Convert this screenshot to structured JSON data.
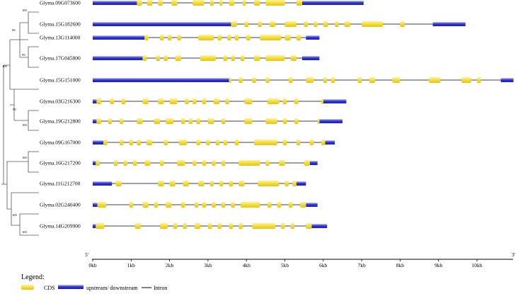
{
  "diagram": {
    "type": "gene_structure",
    "colors": {
      "cds": "#f3dc3c",
      "utr_dark": "#2a2cc8",
      "utr_light": "#9aa0f0",
      "intron": "#000000",
      "tree": "#555555"
    },
    "bootstrap": {
      "b1": "100",
      "b2": "99",
      "b3": "99",
      "b4": "100",
      "b5": "99",
      "b6": "100",
      "b7": "100",
      "b8": "100",
      "b9": "100"
    },
    "axis": {
      "start_label": "5'",
      "end_label": "3'",
      "max_kb": 11,
      "ticks": [
        {
          "value": 0,
          "label": "0kb"
        },
        {
          "value": 1,
          "label": "1kb"
        },
        {
          "value": 2,
          "label": "2kb"
        },
        {
          "value": 3,
          "label": "3kb"
        },
        {
          "value": 4,
          "label": "4kb"
        },
        {
          "value": 5,
          "label": "5kb"
        },
        {
          "value": 6,
          "label": "6kb"
        },
        {
          "value": 7,
          "label": "7kb"
        },
        {
          "value": 8,
          "label": "8kb"
        },
        {
          "value": 9,
          "label": "9kb"
        },
        {
          "value": 10,
          "label": "10kb"
        }
      ]
    },
    "genes": [
      {
        "name": "Glyma.09G073600",
        "length_kb": 7.05,
        "utr": [
          [
            0,
            1.15
          ],
          [
            5.45,
            7.05
          ]
        ],
        "cds": [
          [
            1.15,
            1.28
          ],
          [
            1.42,
            1.55
          ],
          [
            1.7,
            1.82
          ],
          [
            2.05,
            2.2
          ],
          [
            2.6,
            2.9
          ],
          [
            3.05,
            3.15
          ],
          [
            3.3,
            3.38
          ],
          [
            3.55,
            3.68
          ],
          [
            3.9,
            3.98
          ],
          [
            4.2,
            4.35
          ],
          [
            4.5,
            5.0
          ],
          [
            5.3,
            5.45
          ]
        ]
      },
      {
        "name": "Glyma.15G182600",
        "length_kb": 9.7,
        "utr": [
          [
            0,
            3.6
          ],
          [
            8.85,
            9.7
          ]
        ],
        "cds": [
          [
            3.6,
            3.75
          ],
          [
            3.95,
            4.05
          ],
          [
            4.3,
            4.4
          ],
          [
            4.6,
            4.75
          ],
          [
            5.0,
            5.3
          ],
          [
            5.5,
            5.6
          ],
          [
            5.75,
            5.85
          ],
          [
            6.0,
            6.12
          ],
          [
            6.3,
            6.4
          ],
          [
            6.55,
            6.7
          ],
          [
            7.0,
            7.55
          ],
          [
            8.0,
            8.12
          ]
        ]
      },
      {
        "name": "Glyma.13G114000",
        "length_kb": 5.9,
        "utr": [
          [
            0,
            1.35
          ],
          [
            5.55,
            5.9
          ]
        ],
        "cds": [
          [
            1.35,
            1.45
          ],
          [
            1.75,
            1.85
          ],
          [
            1.95,
            2.05
          ],
          [
            2.2,
            2.3
          ],
          [
            2.75,
            3.15
          ],
          [
            3.25,
            3.35
          ],
          [
            3.5,
            3.6
          ],
          [
            3.7,
            3.8
          ],
          [
            4.0,
            4.1
          ],
          [
            4.35,
            4.9
          ],
          [
            5.0,
            5.15
          ],
          [
            5.3,
            5.42
          ]
        ]
      },
      {
        "name": "Glyma.17G045800",
        "length_kb": 5.9,
        "utr": [
          [
            0,
            1.3
          ],
          [
            5.45,
            5.9
          ]
        ],
        "cds": [
          [
            1.3,
            1.4
          ],
          [
            1.65,
            1.75
          ],
          [
            1.85,
            1.95
          ],
          [
            2.15,
            2.3
          ],
          [
            2.8,
            3.2
          ],
          [
            3.4,
            3.5
          ],
          [
            3.6,
            3.7
          ],
          [
            3.85,
            3.95
          ],
          [
            4.2,
            4.35
          ],
          [
            4.5,
            5.0
          ],
          [
            5.15,
            5.3
          ]
        ]
      },
      {
        "name": "Glyma.15G151000",
        "length_kb": 10.95,
        "utr": [
          [
            0,
            3.55
          ],
          [
            10.62,
            10.95
          ]
        ],
        "cds": [
          [
            3.55,
            3.6
          ],
          [
            3.8,
            3.9
          ],
          [
            4.15,
            4.25
          ],
          [
            4.5,
            4.6
          ],
          [
            5.1,
            5.2
          ],
          [
            5.55,
            5.75
          ],
          [
            6.0,
            6.1
          ],
          [
            6.2,
            6.3
          ],
          [
            6.9,
            7.0
          ],
          [
            7.2,
            7.35
          ],
          [
            7.8,
            8.0
          ],
          [
            8.75,
            9.05
          ],
          [
            9.6,
            9.85
          ],
          [
            10.0,
            10.1
          ]
        ]
      },
      {
        "name": "Glyma.03G216300",
        "length_kb": 6.6,
        "utr": [
          [
            0,
            0.1
          ],
          [
            6.0,
            6.6
          ]
        ],
        "cds": [
          [
            0.1,
            0.22
          ],
          [
            0.45,
            0.55
          ],
          [
            0.75,
            0.85
          ],
          [
            1.3,
            1.45
          ],
          [
            1.7,
            1.85
          ],
          [
            2.0,
            2.2
          ],
          [
            2.4,
            2.5
          ],
          [
            2.6,
            2.7
          ],
          [
            2.85,
            2.95
          ],
          [
            3.15,
            3.3
          ],
          [
            3.45,
            3.55
          ],
          [
            3.95,
            4.15
          ],
          [
            4.55,
            4.85
          ],
          [
            4.95,
            5.05
          ],
          [
            5.25,
            5.35
          ],
          [
            5.95,
            6.0
          ]
        ]
      },
      {
        "name": "Glyma.19G212800",
        "length_kb": 6.5,
        "utr": [
          [
            0,
            0.1
          ],
          [
            5.9,
            6.5
          ]
        ],
        "cds": [
          [
            0.1,
            0.22
          ],
          [
            0.4,
            0.5
          ],
          [
            0.7,
            0.8
          ],
          [
            1.15,
            1.3
          ],
          [
            1.6,
            1.75
          ],
          [
            1.9,
            2.1
          ],
          [
            2.3,
            2.4
          ],
          [
            2.5,
            2.6
          ],
          [
            2.7,
            2.8
          ],
          [
            3.0,
            3.15
          ],
          [
            3.35,
            3.45
          ],
          [
            3.95,
            4.15
          ],
          [
            4.5,
            4.8
          ],
          [
            4.95,
            5.05
          ],
          [
            5.25,
            5.35
          ],
          [
            5.85,
            5.9
          ]
        ]
      },
      {
        "name": "Glyma.09G167000",
        "length_kb": 6.3,
        "utr": [
          [
            0,
            0.28
          ],
          [
            6.05,
            6.3
          ]
        ],
        "cds": [
          [
            0.28,
            0.38
          ],
          [
            0.7,
            0.8
          ],
          [
            0.95,
            1.05
          ],
          [
            1.15,
            1.25
          ],
          [
            1.4,
            1.55
          ],
          [
            1.85,
            1.95
          ],
          [
            2.25,
            2.45
          ],
          [
            2.7,
            2.8
          ],
          [
            2.95,
            3.05
          ],
          [
            3.2,
            3.3
          ],
          [
            3.4,
            3.5
          ],
          [
            3.7,
            3.8
          ],
          [
            4.2,
            4.8
          ],
          [
            4.95,
            5.05
          ],
          [
            5.3,
            5.4
          ],
          [
            5.65,
            5.75
          ],
          [
            5.95,
            6.05
          ]
        ]
      },
      {
        "name": "Glyma.16G217200",
        "length_kb": 5.85,
        "utr": [
          [
            0,
            0.08
          ],
          [
            5.65,
            5.85
          ]
        ],
        "cds": [
          [
            0.08,
            0.18
          ],
          [
            0.55,
            0.65
          ],
          [
            0.8,
            0.9
          ],
          [
            1.05,
            1.15
          ],
          [
            1.35,
            1.5
          ],
          [
            1.75,
            1.85
          ],
          [
            2.2,
            2.4
          ],
          [
            2.6,
            2.7
          ],
          [
            2.85,
            2.95
          ],
          [
            3.1,
            3.2
          ],
          [
            3.35,
            3.45
          ],
          [
            3.8,
            4.35
          ],
          [
            4.5,
            4.6
          ],
          [
            4.85,
            5.0
          ],
          [
            5.5,
            5.65
          ]
        ]
      },
      {
        "name": "Glyma.11G212700",
        "length_kb": 5.55,
        "utr": [
          [
            0,
            0.5
          ],
          [
            5.3,
            5.55
          ]
        ],
        "cds": [
          [
            0.6,
            0.75
          ],
          [
            1.7,
            1.85
          ],
          [
            2.0,
            2.15
          ],
          [
            2.35,
            2.5
          ],
          [
            2.75,
            2.9
          ],
          [
            3.05,
            3.15
          ],
          [
            3.3,
            3.4
          ],
          [
            3.55,
            3.65
          ],
          [
            3.8,
            3.95
          ],
          [
            4.3,
            4.85
          ],
          [
            5.0,
            5.1
          ],
          [
            5.2,
            5.3
          ]
        ]
      },
      {
        "name": "Glyma.02G240400",
        "length_kb": 5.85,
        "utr": [
          [
            0,
            0.12
          ],
          [
            5.55,
            5.85
          ]
        ],
        "cds": [
          [
            0.12,
            0.35
          ],
          [
            0.95,
            1.05
          ],
          [
            1.3,
            1.45
          ],
          [
            1.6,
            1.7
          ],
          [
            1.9,
            2.05
          ],
          [
            2.3,
            2.4
          ],
          [
            2.65,
            2.75
          ],
          [
            2.85,
            2.95
          ],
          [
            3.1,
            3.2
          ],
          [
            3.35,
            3.45
          ],
          [
            3.6,
            3.7
          ],
          [
            3.85,
            4.35
          ],
          [
            4.55,
            4.65
          ],
          [
            4.8,
            4.9
          ],
          [
            5.1,
            5.2
          ],
          [
            5.4,
            5.55
          ]
        ]
      },
      {
        "name": "Glyma.14G209900",
        "length_kb": 6.1,
        "utr": [
          [
            0,
            0.08
          ],
          [
            5.7,
            6.1
          ]
        ],
        "cds": [
          [
            0.08,
            0.3
          ],
          [
            1.1,
            1.25
          ],
          [
            1.75,
            1.95
          ],
          [
            2.1,
            2.2
          ],
          [
            2.35,
            2.45
          ],
          [
            2.65,
            2.8
          ],
          [
            3.0,
            3.1
          ],
          [
            3.25,
            3.35
          ],
          [
            3.55,
            3.65
          ],
          [
            3.8,
            3.9
          ],
          [
            4.15,
            4.75
          ],
          [
            4.9,
            5.0
          ],
          [
            5.15,
            5.25
          ],
          [
            5.55,
            5.7
          ]
        ]
      }
    ]
  },
  "legend": {
    "title": "Legend:",
    "cds_label": "CDS",
    "utr_label": "upstream/ downstream",
    "intron_label": "Intron"
  }
}
